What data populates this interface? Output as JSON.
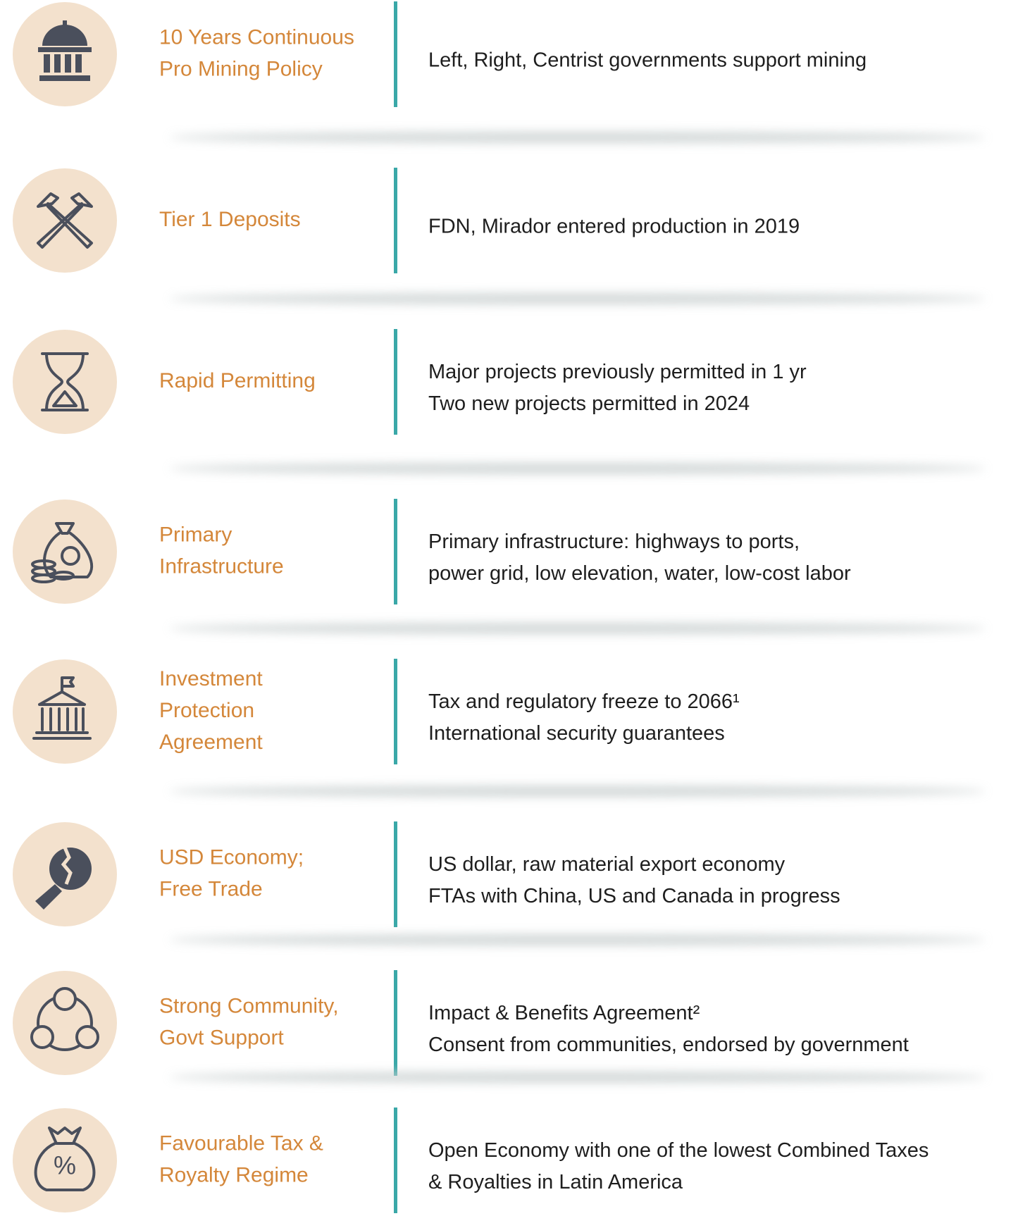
{
  "rows": [
    {
      "title": [
        "10 Years Continuous",
        "Pro Mining Policy"
      ],
      "text": [
        "Left, Right, Centrist governments support mining"
      ]
    },
    {
      "title": [
        "Tier 1 Deposits"
      ],
      "text": [
        "FDN, Mirador entered production in 2019"
      ]
    },
    {
      "title": [
        "Rapid Permitting"
      ],
      "text": [
        "Major projects previously permitted in 1 yr",
        "Two new projects permitted in 2024"
      ]
    },
    {
      "title": [
        "Primary",
        "Infrastructure"
      ],
      "text": [
        "Primary infrastructure: highways to ports,",
        "power grid, low elevation, water, low-cost labor"
      ]
    },
    {
      "title": [
        "Investment",
        "Protection",
        "Agreement"
      ],
      "text": [
        "Tax and regulatory freeze to 2066¹",
        "International security guarantees"
      ]
    },
    {
      "title": [
        "USD Economy;",
        "Free Trade"
      ],
      "text": [
        "US dollar, raw material export economy",
        "FTAs with China, US and Canada in progress"
      ]
    },
    {
      "title": [
        "Strong Community,",
        "Govt Support"
      ],
      "text": [
        "Impact & Benefits Agreement²",
        "Consent from communities, endorsed by government"
      ]
    },
    {
      "title": [
        "Favourable Tax &",
        "Royalty Regime"
      ],
      "text": [
        "Open Economy with one of the lowest Combined Taxes",
        "& Royalties in Latin America"
      ]
    }
  ]
}
